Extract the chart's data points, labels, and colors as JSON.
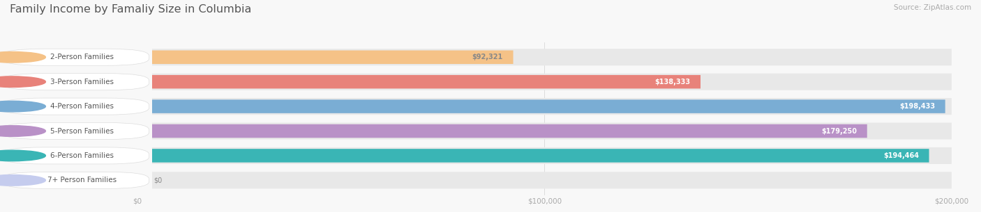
{
  "title": "Family Income by Famaliy Size in Columbia",
  "source": "Source: ZipAtlas.com",
  "categories": [
    "2-Person Families",
    "3-Person Families",
    "4-Person Families",
    "5-Person Families",
    "6-Person Families",
    "7+ Person Families"
  ],
  "values": [
    92321,
    138333,
    198433,
    179250,
    194464,
    0
  ],
  "bar_colors": [
    "#f5c287",
    "#e8827a",
    "#7aadd4",
    "#b991c7",
    "#3ab5b5",
    "#c5ccee"
  ],
  "track_color": "#e8e8e8",
  "figsize": [
    14.06,
    3.05
  ],
  "dpi": 100,
  "title_fontsize": 11.5,
  "label_fontsize": 7.5,
  "value_fontsize": 7,
  "source_fontsize": 7.5,
  "title_color": "#555555",
  "label_text_color": "#555555",
  "xtick_color": "#aaaaaa",
  "grid_color": "#dddddd",
  "bg_color": "#f8f8f8",
  "value_label_colors": [
    "#888888",
    "#ffffff",
    "#ffffff",
    "#ffffff",
    "#ffffff",
    "#888888"
  ],
  "xlim": [
    0,
    200000
  ],
  "xticks": [
    0,
    100000,
    200000
  ],
  "xtick_labels": [
    "$0",
    "$100,000",
    "$200,000"
  ]
}
